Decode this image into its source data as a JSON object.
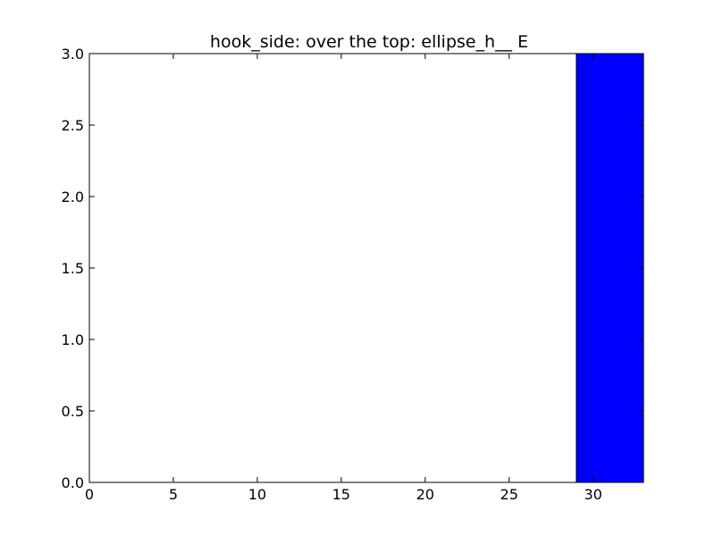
{
  "chart_data": {
    "type": "bar",
    "title": "hook_side: over the top: ellipse_h__ E",
    "xlabel": "",
    "ylabel": "",
    "xlim": [
      0,
      33
    ],
    "ylim": [
      0,
      3.0
    ],
    "xticks": [
      0,
      5,
      10,
      15,
      20,
      25,
      30
    ],
    "yticks": [
      0.0,
      0.5,
      1.0,
      1.5,
      2.0,
      2.5,
      3.0
    ],
    "xtick_labels": [
      "0",
      "5",
      "10",
      "15",
      "20",
      "25",
      "30"
    ],
    "ytick_labels": [
      "0.0",
      "0.5",
      "1.0",
      "1.5",
      "2.0",
      "2.5",
      "3.0"
    ],
    "bars": [
      {
        "x_start": 29,
        "x_end": 33,
        "value": 3
      }
    ],
    "bar_color": "#0000ff",
    "grid": false
  }
}
